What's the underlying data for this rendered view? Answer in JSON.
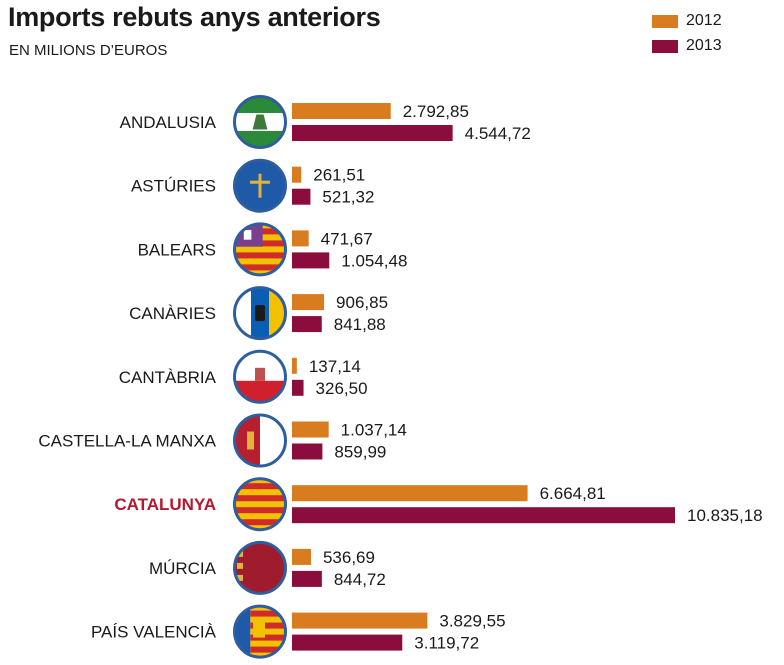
{
  "title": "Imports rebuts anys anteriors",
  "subtitle": "EN MILIONS D’EUROS",
  "colors": {
    "s2012": "#d97b1f",
    "s2013": "#8a0d3d",
    "highlight": "#b5172b",
    "emblemRing": "#2f5e9e"
  },
  "chart_data": {
    "type": "bar",
    "orientation": "horizontal",
    "title": "Imports rebuts anys anteriors",
    "subtitle": "EN MILIONS D’EUROS",
    "legend_position": "top-right",
    "grid": false,
    "xlim": [
      0,
      10835.18
    ],
    "categories": [
      "ANDALUSIA",
      "ASTÚRIES",
      "BALEARS",
      "CANÀRIES",
      "CANTÀBRIA",
      "CASTELLA-LA MANXA",
      "CATALUNYA",
      "MÚRCIA",
      "PAÍS VALENCIÀ"
    ],
    "highlighted_category": "CATALUNYA",
    "series": [
      {
        "name": "2012",
        "values": [
          2792.85,
          261.51,
          471.67,
          906.85,
          137.14,
          1037.14,
          6664.81,
          536.69,
          3829.55
        ],
        "labels": [
          "2.792,85",
          "261,51",
          "471,67",
          "906,85",
          "137,14",
          "1.037,14",
          "6.664,81",
          "536,69",
          "3.829,55"
        ]
      },
      {
        "name": "2013",
        "values": [
          4544.72,
          521.32,
          1054.48,
          841.88,
          326.5,
          859.99,
          10835.18,
          844.72,
          3119.72
        ],
        "labels": [
          "4.544,72",
          "521,32",
          "1.054,48",
          "841,88",
          "326,50",
          "859,99",
          "10.835,18",
          "844,72",
          "3.119,72"
        ]
      }
    ],
    "emblems": [
      "andalusia-flag-icon",
      "asturias-flag-icon",
      "balears-flag-icon",
      "canarias-flag-icon",
      "cantabria-flag-icon",
      "castilla-la-mancha-flag-icon",
      "catalunya-flag-icon",
      "murcia-flag-icon",
      "valencia-flag-icon"
    ]
  }
}
